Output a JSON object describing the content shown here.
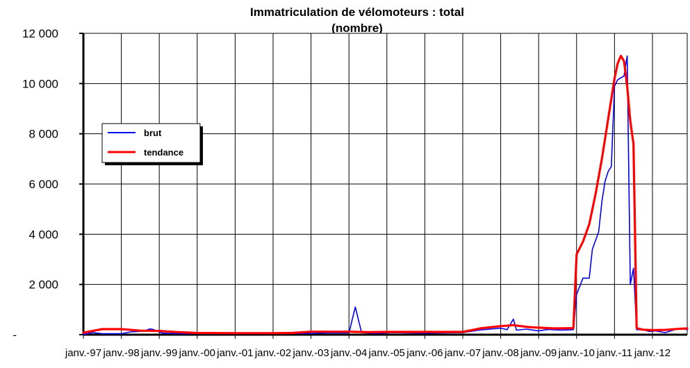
{
  "chart_data": {
    "type": "line",
    "title": "Immatriculation de vélomoteurs : total",
    "subtitle": "(nombre)",
    "xlabel": "",
    "ylabel": "",
    "x_ticks": [
      "janv.-97",
      "janv.-98",
      "janv.-99",
      "janv.-00",
      "janv.-01",
      "janv.-02",
      "janv.-03",
      "janv.-04",
      "janv.-05",
      "janv.-06",
      "janv.-07",
      "janv.-08",
      "janv.-09",
      "janv.-10",
      "janv.-11",
      "janv.-12"
    ],
    "y_ticks": [
      "-",
      "2 000",
      "4 000",
      "6 000",
      "8 000",
      "10 000",
      "12 000"
    ],
    "ylim": [
      0,
      12000
    ],
    "xlim": [
      "janv.-97",
      "déc.-12"
    ],
    "grid": true,
    "legend_position": "left",
    "colors": {
      "brut": "#0000ee",
      "tendance": "#ff0000"
    },
    "series": [
      {
        "name": "brut",
        "points": [
          [
            "1997-01",
            10
          ],
          [
            "1997-04",
            80
          ],
          [
            "1997-07",
            40
          ],
          [
            "1998-01",
            40
          ],
          [
            "1998-04",
            110
          ],
          [
            "1998-08",
            140
          ],
          [
            "1998-10",
            230
          ],
          [
            "1998-11",
            210
          ],
          [
            "1999-02",
            60
          ],
          [
            "1999-07",
            40
          ],
          [
            "2000-01",
            40
          ],
          [
            "2002-01",
            40
          ],
          [
            "2003-01",
            50
          ],
          [
            "2003-06",
            70
          ],
          [
            "2004-01",
            70
          ],
          [
            "2004-03",
            1100
          ],
          [
            "2004-05",
            80
          ],
          [
            "2004-09",
            50
          ],
          [
            "2005-03",
            80
          ],
          [
            "2006-01",
            60
          ],
          [
            "2007-01",
            80
          ],
          [
            "2007-06",
            180
          ],
          [
            "2008-01",
            260
          ],
          [
            "2008-03",
            200
          ],
          [
            "2008-05",
            620
          ],
          [
            "2008-06",
            180
          ],
          [
            "2008-09",
            220
          ],
          [
            "2009-01",
            150
          ],
          [
            "2009-04",
            210
          ],
          [
            "2009-08",
            180
          ],
          [
            "2009-12",
            200
          ],
          [
            "2010-01",
            1600
          ],
          [
            "2010-03",
            2250
          ],
          [
            "2010-05",
            2250
          ],
          [
            "2010-06",
            3400
          ],
          [
            "2010-08",
            4100
          ],
          [
            "2010-09",
            5300
          ],
          [
            "2010-10",
            6100
          ],
          [
            "2010-11",
            6500
          ],
          [
            "2010-12",
            6700
          ],
          [
            "2011-01",
            9900
          ],
          [
            "2011-02",
            10150
          ],
          [
            "2011-04",
            10300
          ],
          [
            "2011-05",
            11100
          ],
          [
            "2011-06",
            2000
          ],
          [
            "2011-07",
            2650
          ],
          [
            "2011-08",
            200
          ],
          [
            "2011-10",
            200
          ],
          [
            "2011-12",
            130
          ],
          [
            "2012-02",
            150
          ],
          [
            "2012-05",
            80
          ],
          [
            "2012-08",
            200
          ],
          [
            "2012-10",
            250
          ],
          [
            "2012-12",
            200
          ]
        ]
      },
      {
        "name": "tendance",
        "points": [
          [
            "1997-01",
            80
          ],
          [
            "1997-07",
            220
          ],
          [
            "1998-01",
            220
          ],
          [
            "1998-07",
            160
          ],
          [
            "1999-01",
            150
          ],
          [
            "1999-07",
            100
          ],
          [
            "2000-01",
            70
          ],
          [
            "2001-01",
            60
          ],
          [
            "2002-01",
            60
          ],
          [
            "2002-07",
            70
          ],
          [
            "2003-01",
            120
          ],
          [
            "2003-07",
            120
          ],
          [
            "2004-01",
            120
          ],
          [
            "2004-07",
            100
          ],
          [
            "2005-01",
            110
          ],
          [
            "2006-01",
            110
          ],
          [
            "2007-01",
            110
          ],
          [
            "2007-07",
            260
          ],
          [
            "2008-01",
            340
          ],
          [
            "2008-05",
            380
          ],
          [
            "2008-10",
            300
          ],
          [
            "2009-01",
            280
          ],
          [
            "2009-06",
            250
          ],
          [
            "2009-12",
            260
          ],
          [
            "2010-01",
            3200
          ],
          [
            "2010-03",
            3700
          ],
          [
            "2010-05",
            4400
          ],
          [
            "2010-07",
            5600
          ],
          [
            "2010-09",
            7000
          ],
          [
            "2010-11",
            8600
          ],
          [
            "2011-01",
            10200
          ],
          [
            "2011-02",
            10800
          ],
          [
            "2011-03",
            11100
          ],
          [
            "2011-04",
            10900
          ],
          [
            "2011-05",
            9900
          ],
          [
            "2011-06",
            8500
          ],
          [
            "2011-07",
            7600
          ],
          [
            "2011-08",
            260
          ],
          [
            "2011-10",
            200
          ],
          [
            "2012-01",
            180
          ],
          [
            "2012-05",
            190
          ],
          [
            "2012-09",
            230
          ],
          [
            "2012-12",
            250
          ]
        ]
      }
    ]
  }
}
